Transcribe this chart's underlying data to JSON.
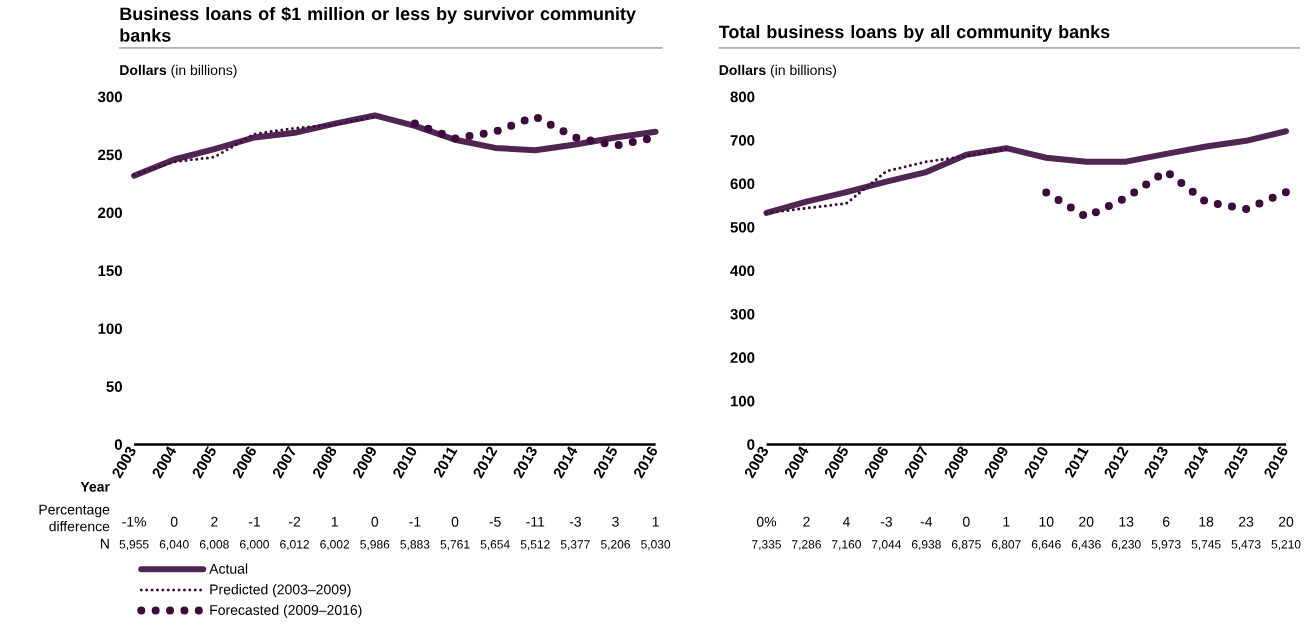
{
  "chart_data": [
    {
      "type": "line",
      "title": "Business loans of $1 million or less by survivor community banks",
      "ylabel": "**Dollars** (in billions)",
      "categories": [
        "2003",
        "2004",
        "2005",
        "2006",
        "2007",
        "2008",
        "2009",
        "2010",
        "2011",
        "2012",
        "2013",
        "2014",
        "2015",
        "2016"
      ],
      "ylim": [
        0,
        300
      ],
      "yticks": [
        0,
        50,
        100,
        150,
        200,
        250,
        300
      ],
      "legend": "bottom",
      "series": [
        {
          "name": "Actual",
          "color": "#4f2552",
          "line_style": "solid",
          "values": [
            232,
            246,
            255,
            265,
            269,
            277,
            284,
            275,
            263,
            256,
            254,
            259,
            265,
            270
          ]
        },
        {
          "name": "Predicted (2003–2009)",
          "color": "#3c0b3c",
          "line_style": "dotted",
          "values": [
            233,
            244,
            248,
            268,
            273,
            276,
            283,
            null,
            null,
            null,
            null,
            null,
            null,
            null
          ]
        },
        {
          "name": "Forecasted (2009–2016)",
          "color": "#3c0b3c",
          "line_style": "dotted",
          "values": [
            null,
            null,
            null,
            null,
            null,
            null,
            null,
            277,
            264,
            270,
            283,
            265,
            258,
            265
          ]
        }
      ],
      "annotations": [
        "Year",
        "Percentage difference",
        "N",
        "-1%",
        "0",
        "2",
        "-1",
        "-2",
        "1",
        "0",
        "-1",
        "0",
        "-5",
        "-11",
        "-3",
        "3",
        "1",
        "5,955",
        "6,040",
        "6,008",
        "6,000",
        "6,012",
        "6,002",
        "5,986",
        "5,883",
        "5,761",
        "5,654",
        "5,512",
        "5,377",
        "5,206",
        "5,030"
      ]
    },
    {
      "type": "line",
      "title": "Total business loans by all community banks",
      "ylabel": "**Dollars** (in billions)",
      "categories": [
        "2003",
        "2004",
        "2005",
        "2006",
        "2007",
        "2008",
        "2009",
        "2010",
        "2011",
        "2012",
        "2013",
        "2014",
        "2015",
        "2016"
      ],
      "ylim": [
        0,
        800
      ],
      "yticks": [
        0,
        100,
        200,
        300,
        400,
        500,
        600,
        700,
        800
      ],
      "series": [
        {
          "color": "#4f2552",
          "line_style": "solid",
          "values": [
            533,
            559,
            581,
            605,
            627,
            667,
            682,
            660,
            651,
            651,
            669,
            686,
            699,
            721
          ]
        },
        {
          "color": "#3c0b3c",
          "line_style": "dotted",
          "values": [
            533,
            544,
            555,
            629,
            651,
            664,
            680,
            null,
            null,
            null,
            null,
            null,
            null,
            null
          ]
        },
        {
          "color": "#3c0b3c",
          "line_style": "dotted",
          "values": [
            null,
            null,
            null,
            null,
            null,
            null,
            null,
            580,
            524,
            568,
            629,
            558,
            542,
            581
          ]
        }
      ],
      "annotations": [
        "0%",
        "2",
        "4",
        "-3",
        "-4",
        "0",
        "1",
        "10",
        "20",
        "13",
        "6",
        "18",
        "23",
        "20",
        "7,335",
        "7,286",
        "7,160",
        "7,044",
        "6,938",
        "6,875",
        "6,807",
        "6,646",
        "6,436",
        "6,230",
        "5,973",
        "5,745",
        "5,473",
        "5,210"
      ]
    }
  ]
}
